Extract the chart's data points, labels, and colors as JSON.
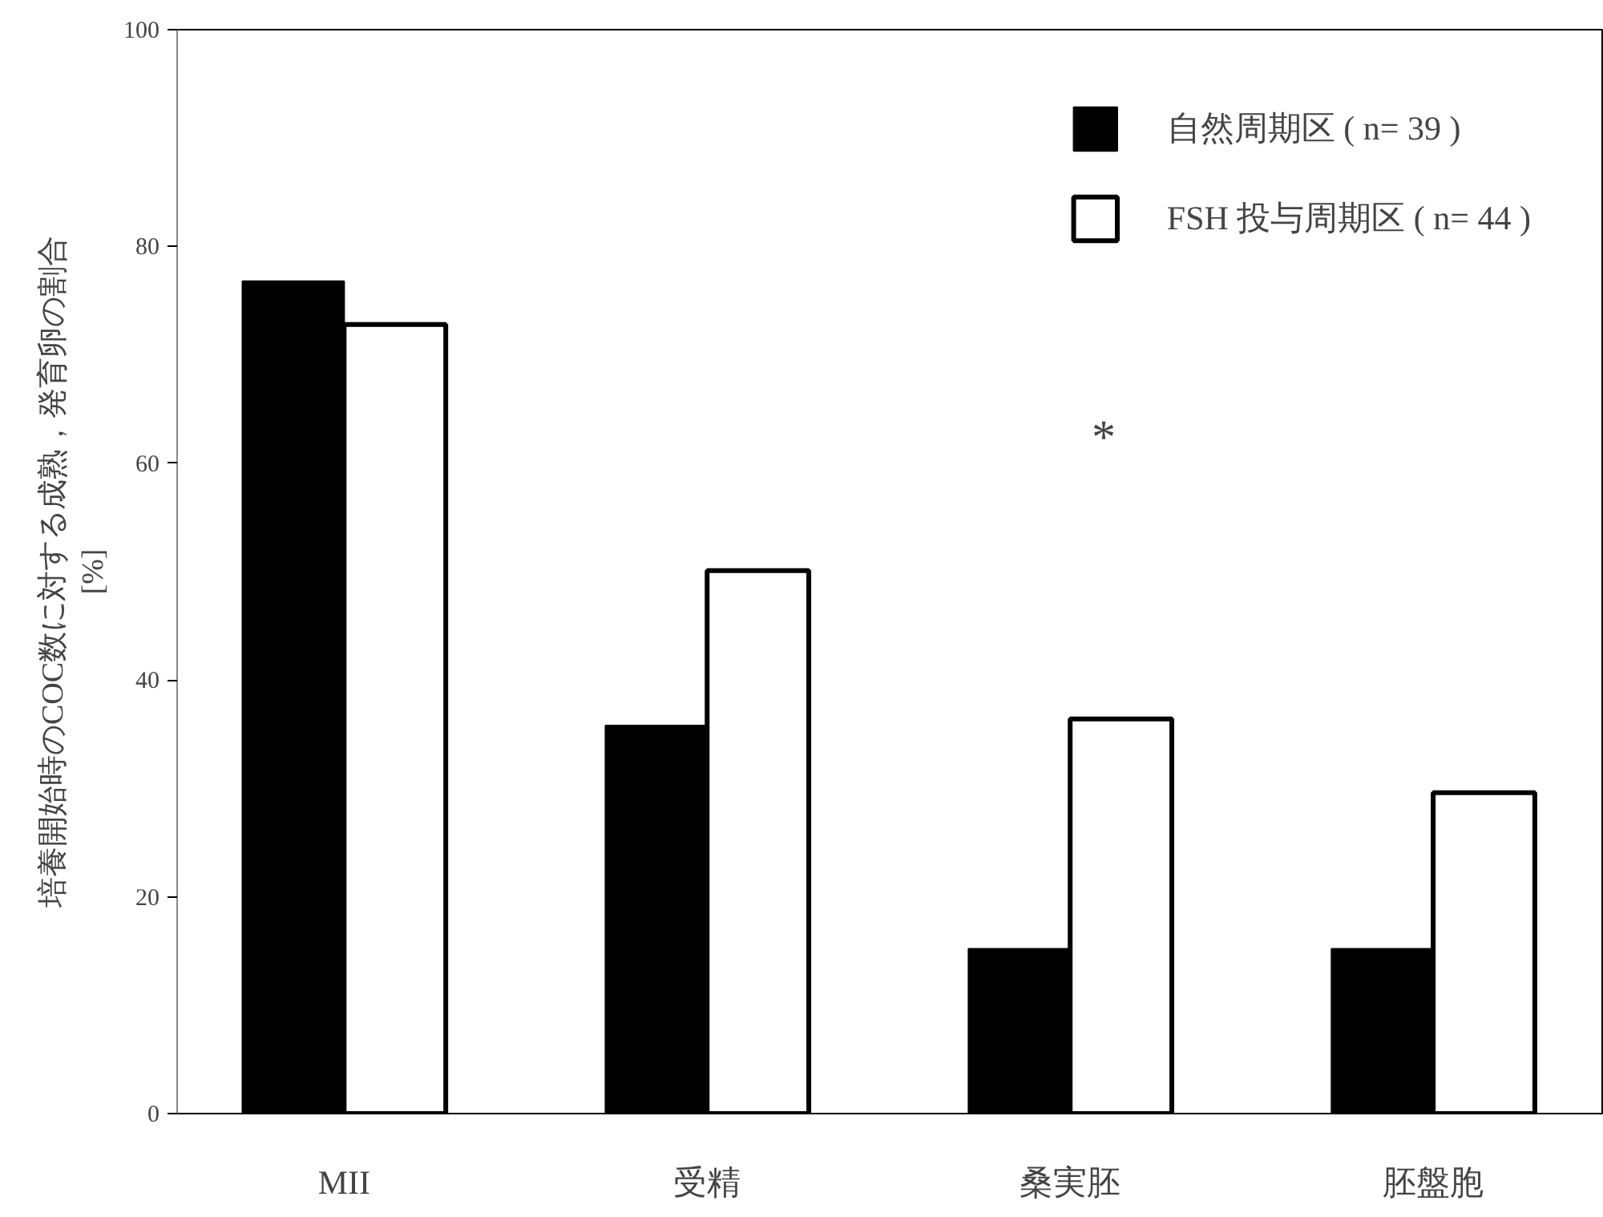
{
  "chart_data": {
    "type": "bar",
    "ylabel": "培養開始時のCOC数に対する成熟，発育卵の割合\n[%]",
    "categories": [
      "MII",
      "受精",
      "桑実胚",
      "胚盤胞"
    ],
    "series": [
      {
        "name": "自然周期区 ( n= 39 )",
        "color": "#000000",
        "values": [
          76.8,
          35.8,
          15.2,
          15.2
        ]
      },
      {
        "name": "FSH 投与周期区 ( n= 44 )",
        "color": "#ffffff",
        "values": [
          72.8,
          50.1,
          36.4,
          29.6
        ]
      }
    ],
    "ylim": [
      0,
      100
    ],
    "yticks": [
      0,
      20,
      40,
      60,
      80,
      100
    ],
    "annotations": [
      "*"
    ],
    "legend": "top right",
    "grid": false
  }
}
